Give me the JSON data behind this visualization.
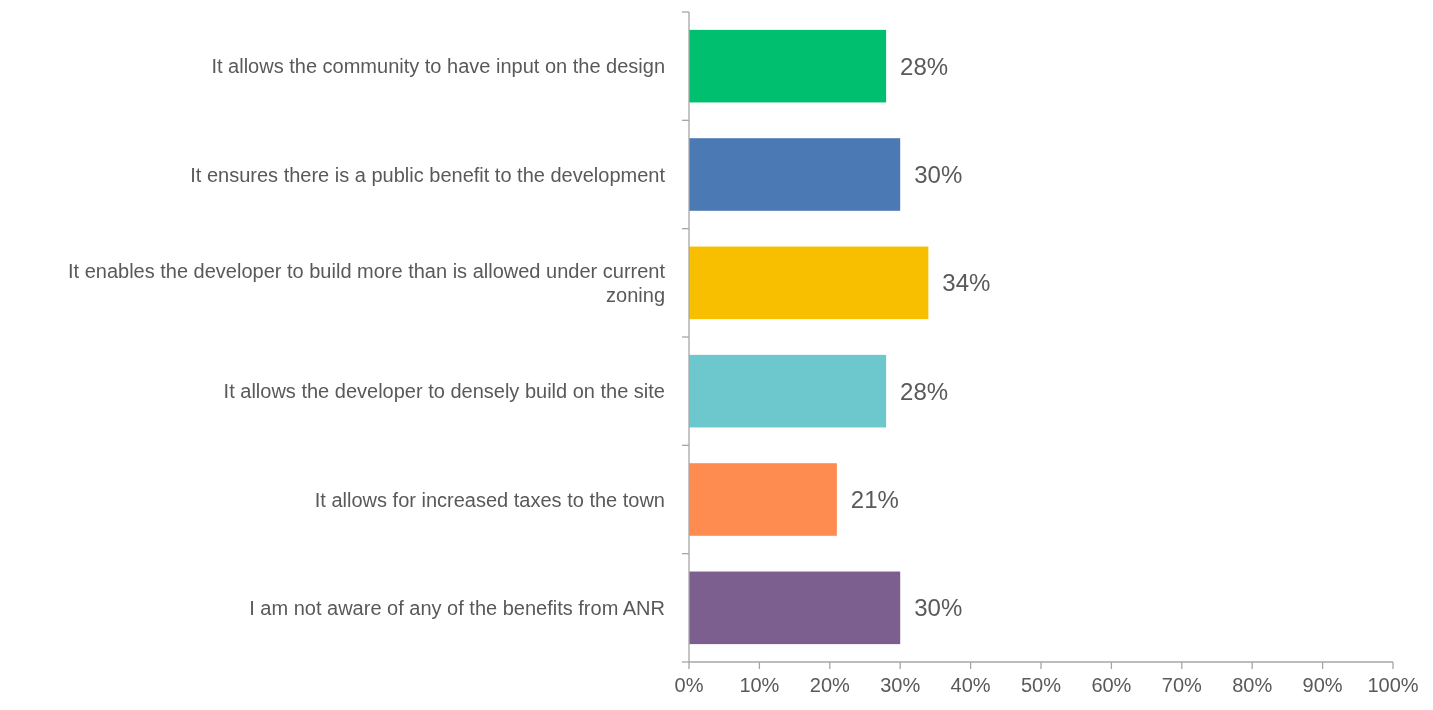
{
  "chart_data": {
    "type": "bar",
    "orientation": "horizontal",
    "categories": [
      "It allows the community to have input on the design",
      "It ensures there is a public benefit to the development",
      "It enables the developer to build more than is allowed under current zoning",
      "It allows the developer to densely build on the site",
      "It allows for increased taxes to the town",
      "I am not aware of any of the benefits from ANR"
    ],
    "values": [
      28,
      30,
      34,
      28,
      21,
      30
    ],
    "colors": [
      "#00bf6f",
      "#4a79b4",
      "#f7bf00",
      "#6cc8cc",
      "#fe8b4f",
      "#7d5f8f"
    ],
    "value_labels": [
      "28%",
      "30%",
      "34%",
      "28%",
      "21%",
      "30%"
    ],
    "xlim": [
      0,
      100
    ],
    "xticks": [
      {
        "value": 0,
        "label": "0%"
      },
      {
        "value": 10,
        "label": "10%"
      },
      {
        "value": 20,
        "label": "20%"
      },
      {
        "value": 30,
        "label": "30%"
      },
      {
        "value": 40,
        "label": "40%"
      },
      {
        "value": 50,
        "label": "50%"
      },
      {
        "value": 60,
        "label": "60%"
      },
      {
        "value": 70,
        "label": "70%"
      },
      {
        "value": 80,
        "label": "80%"
      },
      {
        "value": 90,
        "label": "90%"
      },
      {
        "value": 100,
        "label": "100%"
      }
    ],
    "grid": false
  }
}
